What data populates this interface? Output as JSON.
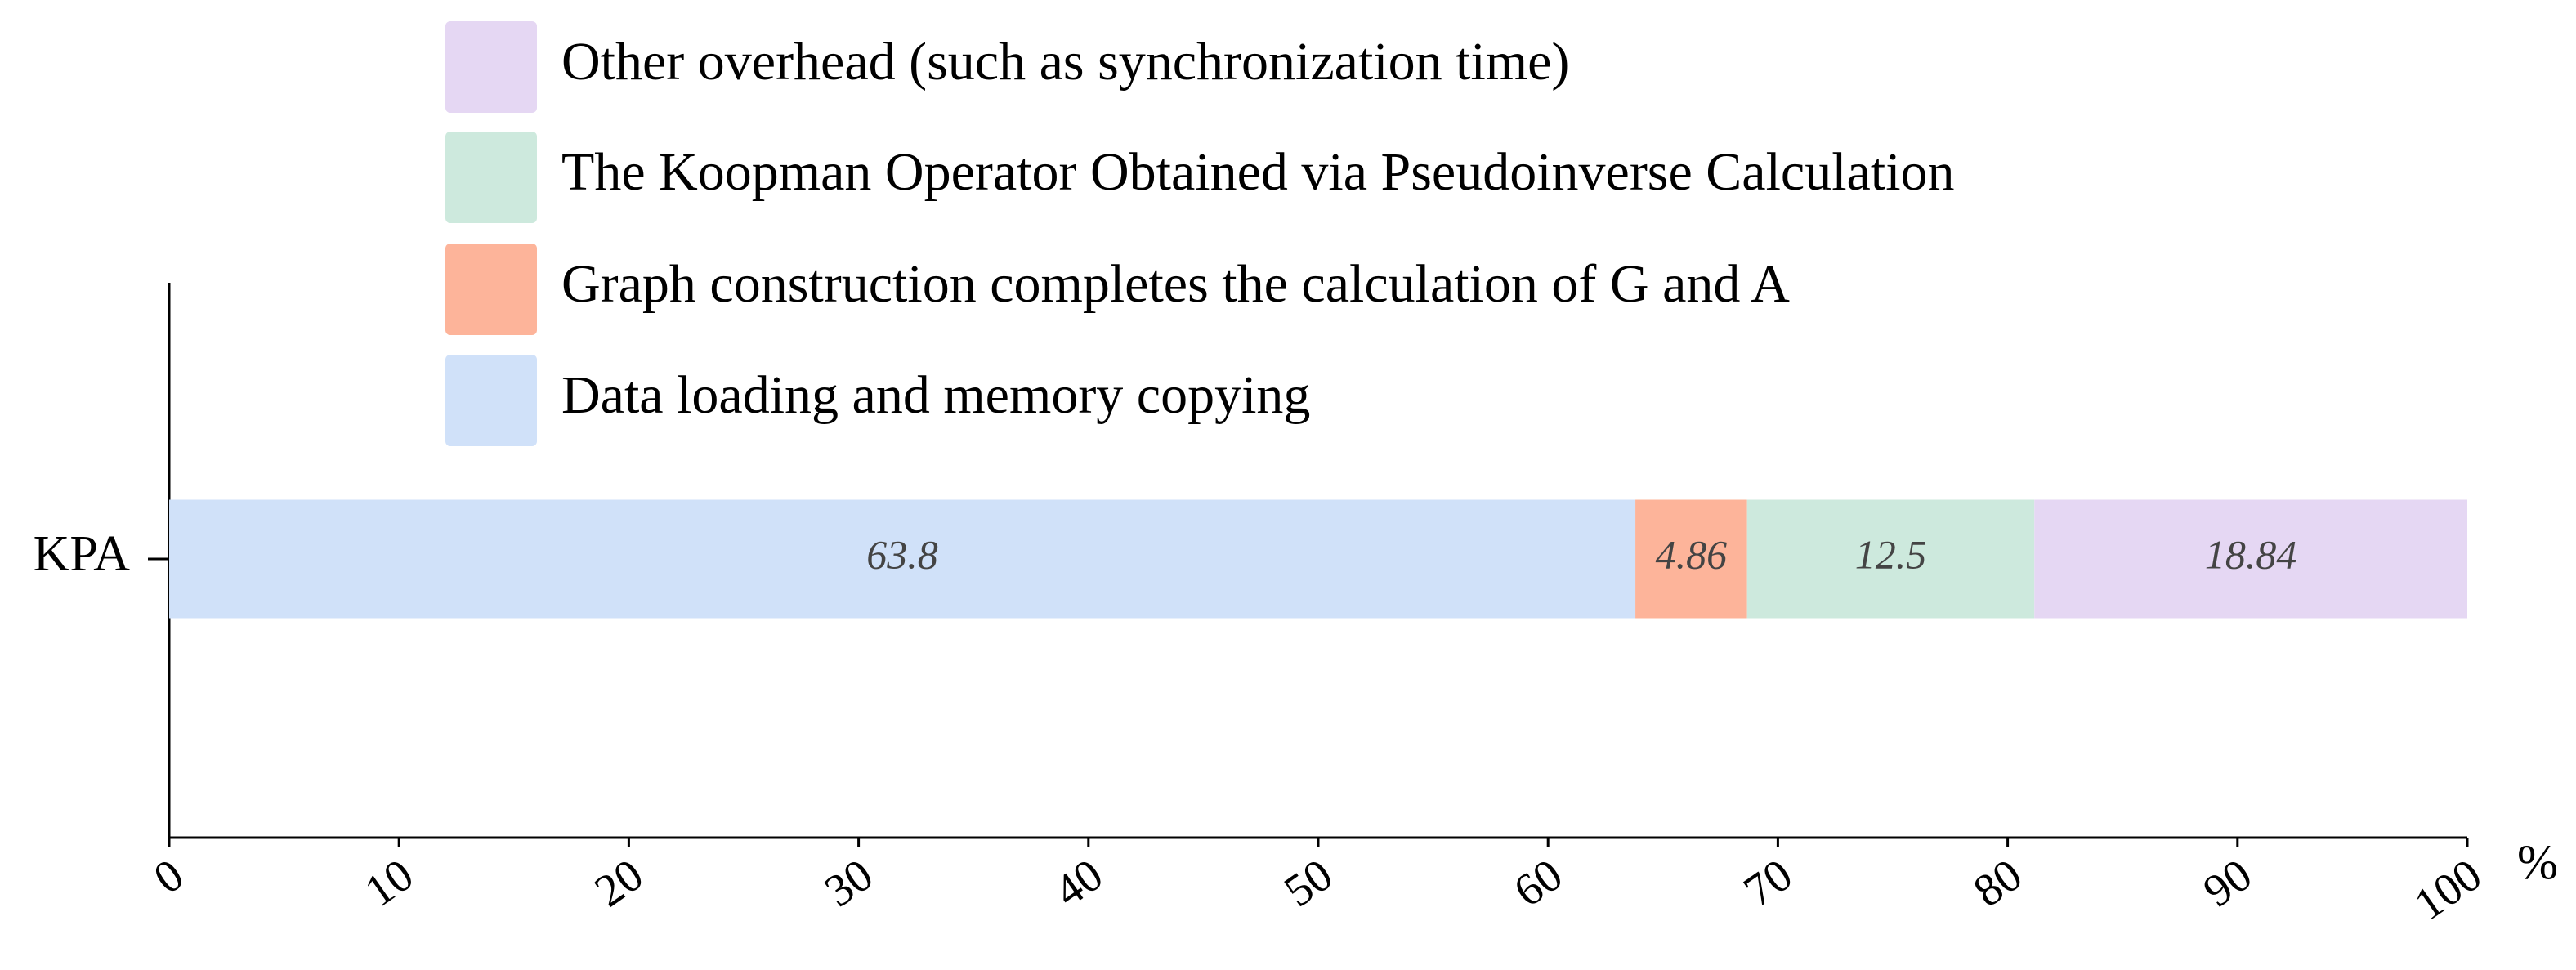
{
  "chart_data": {
    "type": "stacked-barh",
    "categories": [
      "KPA"
    ],
    "series": [
      {
        "name": "Data loading and memory copying",
        "color": "#d0e1f9",
        "values": [
          63.8
        ]
      },
      {
        "name": "Graph construction completes the calculation of G and A",
        "color": "#fdb49a",
        "values": [
          4.86
        ]
      },
      {
        "name": "The Koopman Operator Obtained via Pseudoinverse Calculation",
        "color": "#cde9dd",
        "values": [
          12.5
        ]
      },
      {
        "name": "Other overhead (such as synchronization time)",
        "color": "#e5d7f3",
        "values": [
          18.84
        ]
      }
    ],
    "xlabel": "%",
    "xlim": [
      0,
      100
    ],
    "xticks": [
      0,
      10,
      20,
      30,
      40,
      50,
      60,
      70,
      80,
      90,
      100
    ],
    "legend": "top"
  }
}
